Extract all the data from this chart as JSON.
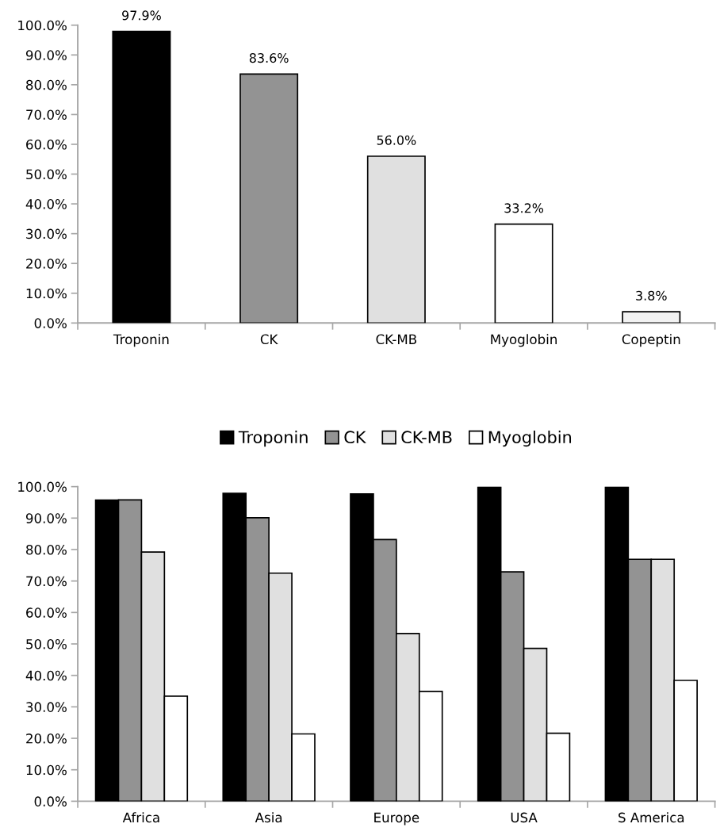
{
  "chart_data": [
    {
      "type": "bar",
      "categories": [
        "Troponin",
        "CK",
        "CK-MB",
        "Myoglobin",
        "Copeptin"
      ],
      "values": [
        97.9,
        83.6,
        56.0,
        33.2,
        3.8
      ],
      "colors": [
        "#000000",
        "#939393",
        "#e0e0e0",
        "#ffffff",
        "#f2f2f2"
      ],
      "value_labels": [
        "97.9%",
        "83.6%",
        "56.0%",
        "33.2%",
        "3.8%"
      ],
      "ylim": [
        0,
        100
      ],
      "yticks": [
        {
          "value": 0,
          "label": "0.0%"
        },
        {
          "value": 10,
          "label": "10.0%"
        },
        {
          "value": 20,
          "label": "20.0%"
        },
        {
          "value": 30,
          "label": "30.0%"
        },
        {
          "value": 40,
          "label": "40.0%"
        },
        {
          "value": 50,
          "label": "50.0%"
        },
        {
          "value": 60,
          "label": "60.0%"
        },
        {
          "value": 70,
          "label": "70.0%"
        },
        {
          "value": 80,
          "label": "80.0%"
        },
        {
          "value": 90,
          "label": "90.0%"
        },
        {
          "value": 100,
          "label": "100.0%"
        }
      ],
      "grid": false,
      "legend": false
    },
    {
      "type": "bar",
      "categories": [
        "Africa",
        "Asia",
        "Europe",
        "USA",
        "S America"
      ],
      "series": [
        {
          "name": "Troponin",
          "color": "#000000",
          "values": [
            95.7,
            97.9,
            97.7,
            100,
            100
          ]
        },
        {
          "name": "CK",
          "color": "#939393",
          "values": [
            95.8,
            90.1,
            83.2,
            72.9,
            76.9
          ]
        },
        {
          "name": "CK-MB",
          "color": "#e0e0e0",
          "values": [
            79.2,
            72.5,
            53.3,
            48.6,
            76.9
          ]
        },
        {
          "name": "Myoglobin",
          "color": "#ffffff",
          "values": [
            33.4,
            21.4,
            34.9,
            21.6,
            38.4
          ]
        }
      ],
      "ylim": [
        0,
        100
      ],
      "yticks": [
        {
          "value": 0,
          "label": "0.0%"
        },
        {
          "value": 10,
          "label": "10.0%"
        },
        {
          "value": 20,
          "label": "20.0%"
        },
        {
          "value": 30,
          "label": "30.0%"
        },
        {
          "value": 40,
          "label": "40.0%"
        },
        {
          "value": 50,
          "label": "50.0%"
        },
        {
          "value": 60,
          "label": "60.0%"
        },
        {
          "value": 70,
          "label": "70.0%"
        },
        {
          "value": 80,
          "label": "80.0%"
        },
        {
          "value": 90,
          "label": "90.0%"
        },
        {
          "value": 100,
          "label": "100.0%"
        }
      ],
      "grid": false,
      "legend": "top"
    }
  ]
}
